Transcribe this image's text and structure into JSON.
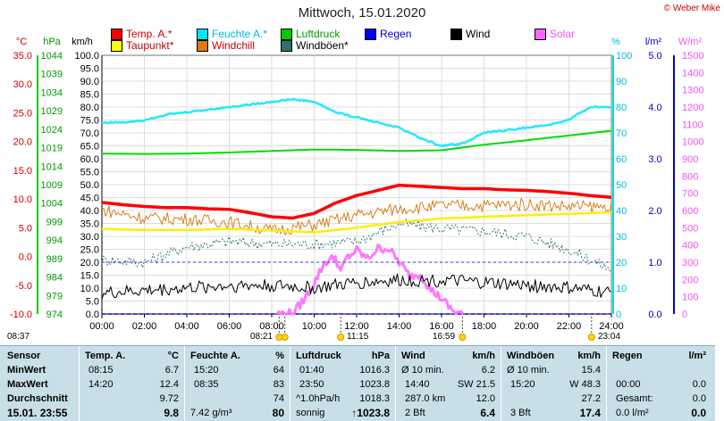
{
  "title": "Mittwoch, 15.01.2020",
  "credit": "© Weber Mike",
  "legend": [
    {
      "label": "Temp. A.*",
      "color": "#ff0000",
      "key": "temp"
    },
    {
      "label": "Feuchte A.*",
      "color": "#00e5ff",
      "key": "hum"
    },
    {
      "label": "Luftdruck",
      "color": "#00cc00",
      "key": "press"
    },
    {
      "label": "Regen",
      "color": "#0000ff",
      "key": "rain"
    },
    {
      "label": "Wind",
      "color": "#000000",
      "key": "wind"
    },
    {
      "label": "Solar",
      "color": "#ff66ff",
      "key": "solar"
    },
    {
      "label": "Taupunkt*",
      "color": "#ffff00",
      "key": "dew"
    },
    {
      "label": "Windchill",
      "color": "#e07a10",
      "key": "chill"
    },
    {
      "label": "Windböen*",
      "color": "#2f6f6f",
      "key": "gust"
    }
  ],
  "axis_units": {
    "temp": "°C",
    "press": "hPa",
    "wind": "km/h",
    "hum": "%",
    "rain": "l/m²",
    "solar": "W/m²"
  },
  "chart_data": {
    "type": "line",
    "x_ticks": [
      "00:00",
      "02:00",
      "04:00",
      "06:00",
      "08:00",
      "10:00",
      "12:00",
      "14:00",
      "16:00",
      "18:00",
      "20:00",
      "22:00",
      "24:00"
    ],
    "axes": {
      "temp": {
        "ticks": [
          "35.0",
          "30.0",
          "25.0",
          "20.0",
          "15.0",
          "10.0",
          "5.0",
          "0.0",
          "-5.0",
          "-10.0"
        ],
        "min": -10,
        "max": 35
      },
      "press": {
        "ticks": [
          "1044",
          "1039",
          "1034",
          "1029",
          "1024",
          "1019",
          "1014",
          "1009",
          "1004",
          "999",
          "994",
          "989",
          "984",
          "979",
          "974"
        ],
        "min": 974,
        "max": 1044
      },
      "wind": {
        "ticks": [
          "100.0",
          "95.0",
          "90.0",
          "85.0",
          "80.0",
          "75.0",
          "70.0",
          "65.0",
          "60.0",
          "55.0",
          "50.0",
          "45.0",
          "40.0",
          "35.0",
          "30.0",
          "25.0",
          "20.0",
          "15.0",
          "10.0",
          "5.0",
          "0.0"
        ],
        "min": 0,
        "max": 100
      },
      "hum": {
        "ticks": [
          "100",
          "90",
          "80",
          "70",
          "60",
          "50",
          "40",
          "30",
          "20",
          "10",
          "0"
        ],
        "min": 0,
        "max": 100
      },
      "rain": {
        "ticks": [
          "5.0",
          "4.0",
          "3.0",
          "2.0",
          "1.0",
          "0.0"
        ],
        "min": 0,
        "max": 5
      },
      "solar": {
        "ticks": [
          "1500",
          "1400",
          "1300",
          "1200",
          "1100",
          "1000",
          "900",
          "800",
          "700",
          "600",
          "500",
          "400",
          "300",
          "200",
          "100",
          "0"
        ],
        "min": 0,
        "max": 1500
      }
    },
    "series": [
      {
        "name": "Temp. A.*",
        "axis": "temp",
        "x": [
          0,
          1,
          2,
          3,
          4,
          5,
          6,
          7,
          8,
          9,
          10,
          11,
          12,
          13,
          14,
          15,
          16,
          17,
          18,
          19,
          20,
          21,
          22,
          23,
          24
        ],
        "values": [
          9.4,
          9.0,
          8.7,
          8.5,
          8.5,
          8.3,
          8.2,
          7.6,
          6.9,
          6.7,
          7.5,
          9.3,
          10.6,
          11.5,
          12.4,
          12.2,
          12.0,
          11.8,
          11.8,
          11.6,
          11.5,
          11.3,
          11.0,
          10.6,
          10.3
        ]
      },
      {
        "name": "Feuchte A.*",
        "axis": "hum",
        "x": [
          0,
          1,
          2,
          3,
          4,
          5,
          6,
          7,
          8,
          9,
          10,
          11,
          12,
          13,
          14,
          15,
          16,
          17,
          18,
          19,
          20,
          21,
          22,
          23,
          24
        ],
        "values": [
          74,
          74,
          75,
          77,
          78,
          79,
          80,
          81,
          82,
          83,
          82,
          78,
          76,
          74,
          72,
          68,
          65,
          66,
          70,
          71,
          72,
          73,
          75,
          80,
          80
        ]
      },
      {
        "name": "Luftdruck",
        "axis": "press",
        "x": [
          0,
          2,
          4,
          6,
          8,
          10,
          12,
          14,
          16,
          18,
          20,
          22,
          24
        ],
        "values": [
          1017.4,
          1017.3,
          1017.4,
          1017.7,
          1018.1,
          1018.5,
          1018.4,
          1018.1,
          1018.3,
          1019.8,
          1021.0,
          1022.3,
          1023.6
        ]
      },
      {
        "name": "Regen",
        "axis": "rain",
        "x": [
          0,
          24
        ],
        "values": [
          0,
          0
        ]
      },
      {
        "name": "Wind",
        "axis": "wind",
        "x": [
          0,
          2,
          4,
          6,
          8,
          10,
          12,
          14,
          16,
          18,
          20,
          22,
          24
        ],
        "values": [
          8,
          9,
          10,
          11,
          11,
          10,
          12,
          13,
          13,
          12,
          11,
          10,
          8
        ]
      },
      {
        "name": "Solar",
        "axis": "solar",
        "x": [
          8.25,
          9,
          9.5,
          10,
          10.5,
          11,
          11.25,
          11.5,
          12,
          12.5,
          13,
          13.5,
          14,
          14.5,
          15,
          15.5,
          16,
          16.5,
          17
        ],
        "values": [
          0,
          5,
          80,
          180,
          300,
          330,
          240,
          320,
          370,
          320,
          380,
          380,
          300,
          220,
          230,
          140,
          90,
          20,
          0
        ]
      },
      {
        "name": "Taupunkt*",
        "axis": "temp",
        "x": [
          0,
          2,
          4,
          6,
          8,
          10,
          12,
          14,
          16,
          18,
          20,
          22,
          24
        ],
        "values": [
          4.8,
          4.6,
          4.6,
          4.8,
          4.5,
          4.2,
          5.0,
          6.0,
          6.6,
          6.9,
          7.2,
          7.4,
          7.7
        ]
      },
      {
        "name": "Windchill",
        "axis": "temp",
        "x": [
          0,
          2,
          4,
          6,
          8,
          10,
          12,
          14,
          16,
          18,
          20,
          22,
          24
        ],
        "values": [
          8.1,
          6.7,
          6.5,
          6.0,
          4.5,
          5.5,
          7.2,
          8.3,
          8.8,
          8.9,
          9.1,
          8.7,
          8.6
        ]
      },
      {
        "name": "Windböen*",
        "axis": "wind",
        "x": [
          0,
          2,
          4,
          6,
          8,
          10,
          12,
          14,
          16,
          18,
          20,
          22,
          24
        ],
        "values": [
          21,
          20,
          26,
          28,
          27,
          27,
          28,
          35,
          33,
          32,
          30,
          25,
          17
        ]
      }
    ],
    "markers": {
      "sunrise": "08:21",
      "solar_noon": "11:15",
      "sunset": "16:59",
      "moonset": "08:37",
      "moonrise": "23:04"
    }
  },
  "table": {
    "rows": [
      "Sensor",
      "MinWert",
      "MaxWert",
      "Durchschnitt",
      "15.01. 23:55"
    ],
    "temp": {
      "header": "Temp. A.",
      "unit": "°C",
      "min_time": "08:15",
      "min": "6.7",
      "max_time": "14:20",
      "max": "12.4",
      "avg": "9.72",
      "current": "9.8"
    },
    "hum": {
      "header": "Feuchte A.",
      "unit": "%",
      "min_time": "15:20",
      "min": "64",
      "max_time": "08:35",
      "max": "83",
      "avg": "74",
      "abs": "7.42 g/m³",
      "current": "80"
    },
    "press": {
      "header": "Luftdruck",
      "unit": "hPa",
      "min_time": "01:40",
      "min": "1016.3",
      "max_time": "23:50",
      "max": "1023.8",
      "trend": "^1.0hPa/h",
      "avg": "1018.3",
      "state": "sonnig",
      "current": "↑1023.8"
    },
    "wind": {
      "header": "Wind",
      "unit": "km/h",
      "l1": "Ø 10 min.",
      "v1": "6.2",
      "l2": "14:40",
      "l2b": "SW 21.5",
      "l3": "287.0 km",
      "v3": "12.0",
      "l4": "2 Bft",
      "current": "6.4"
    },
    "gust": {
      "header": "Windböen",
      "unit": "km/h",
      "l1": "Ø 10 min.",
      "v1": "15.4",
      "l2": "15:20",
      "l2b": "W 48.3",
      "v3": "27.2",
      "l4": "3 Bft",
      "current": "17.4"
    },
    "rain": {
      "header": "Regen",
      "unit": "l/m²",
      "l2": "00:00",
      "v2": "0.0",
      "l3": "Gesamt:",
      "v3": "0.0",
      "l4": "0.0 l/m²",
      "current": "0.0"
    }
  }
}
